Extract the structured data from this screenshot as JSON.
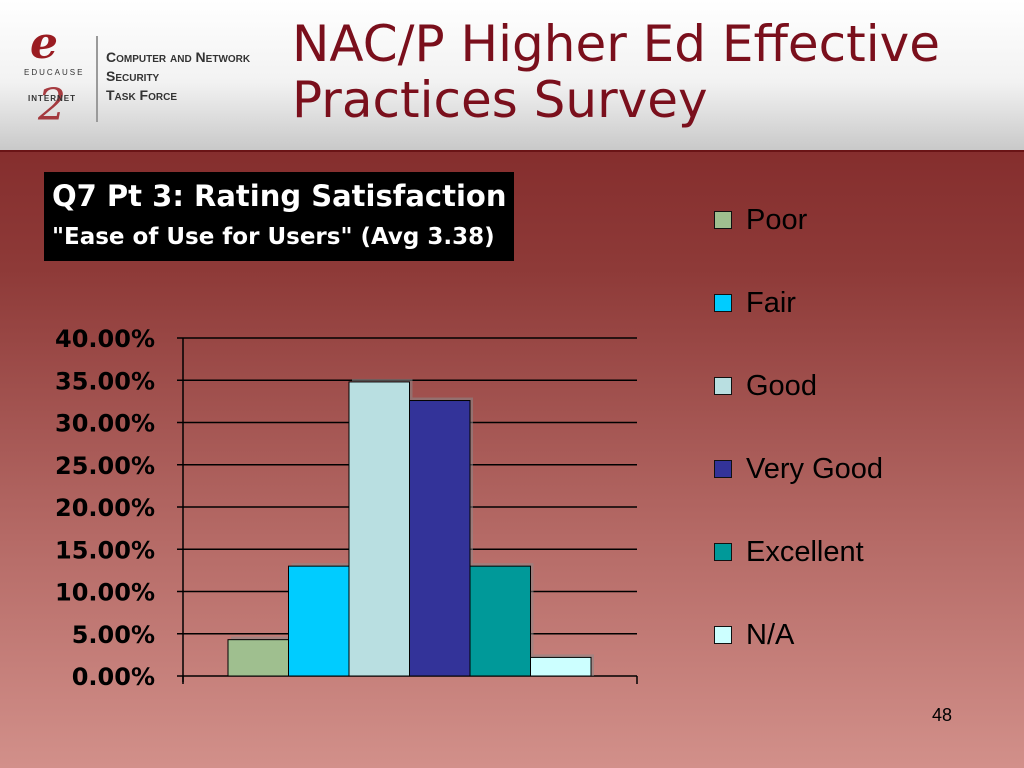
{
  "header": {
    "title_line1": "NAC/P Higher Ed Effective",
    "title_line2": "Practices Survey",
    "logo": {
      "mark_e": "e",
      "educause": "EDUCAUSE",
      "internet": "INTERNET",
      "mark_2": "2",
      "line1": "Computer and Network",
      "line2": "Security",
      "line3": "Task Force"
    }
  },
  "slide_number": "48",
  "chart_data": {
    "type": "bar",
    "title_line1": "Q7 Pt 3: Rating Satisfaction",
    "title_line2": "\"Ease of Use for Users\"  (Avg 3.38)",
    "categories": [
      "Poor",
      "Fair",
      "Good",
      "Very Good",
      "Excellent",
      "N/A"
    ],
    "values": [
      4.3,
      13.0,
      34.8,
      32.6,
      13.0,
      2.2
    ],
    "colors": [
      "#9fbf8f",
      "#00ccff",
      "#b9dfe1",
      "#333399",
      "#009999",
      "#ccffff"
    ],
    "ylim": [
      0,
      40
    ],
    "yticks": [
      "0.00%",
      "5.00%",
      "10.00%",
      "15.00%",
      "20.00%",
      "25.00%",
      "30.00%",
      "35.00%",
      "40.00%"
    ],
    "grid": true,
    "legend_placement": "right"
  }
}
